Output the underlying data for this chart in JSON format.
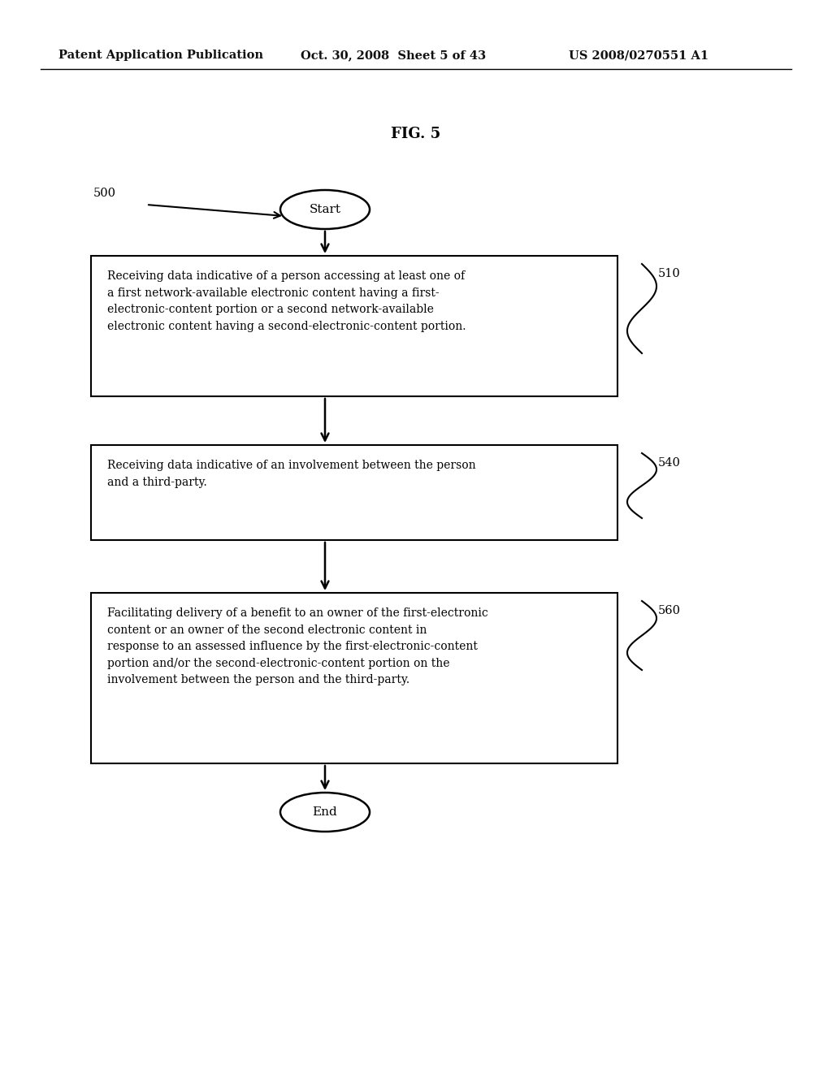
{
  "background_color": "#ffffff",
  "header_left": "Patent Application Publication",
  "header_mid": "Oct. 30, 2008  Sheet 5 of 43",
  "header_right": "US 2008/0270551 A1",
  "fig_title": "FIG. 5",
  "label_500": "500",
  "label_510": "510",
  "label_540": "540",
  "label_560": "560",
  "start_text": "Start",
  "end_text": "End",
  "box1_text": "Receiving data indicative of a person accessing at least one of\na first network-available electronic content having a first-\nelectronic-content portion or a second network-available\nelectronic content having a second-electronic-content portion.",
  "box2_text": "Receiving data indicative of an involvement between the person\nand a third-party.",
  "box3_text": "Facilitating delivery of a benefit to an owner of the first-electronic\ncontent or an owner of the second electronic content in\nresponse to an assessed influence by the first-electronic-content\nportion and/or the second-electronic-content portion on the\ninvolvement between the person and the third-party.",
  "font_size_header": 10.5,
  "font_size_fig_title": 13,
  "font_size_body": 10.0,
  "font_size_label": 10.5,
  "font_size_terminal": 11
}
